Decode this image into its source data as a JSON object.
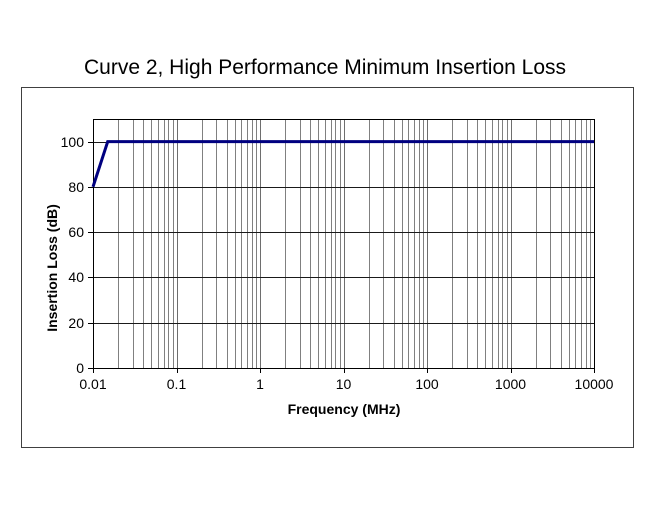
{
  "page": {
    "background": "#ffffff"
  },
  "chart_data": {
    "type": "line",
    "title": "Curve 2, High Performance Minimum Insertion Loss",
    "xlabel": "Frequency (MHz)",
    "ylabel": "Insertion Loss (dB)",
    "x_scale": "log",
    "y_scale": "linear",
    "xlim": [
      0.01,
      10000
    ],
    "ylim": [
      0,
      110
    ],
    "x_ticks": [
      "0.01",
      "0.1",
      "1",
      "10",
      "100",
      "1000",
      "10000"
    ],
    "y_ticks": [
      0,
      20,
      40,
      60,
      80,
      100
    ],
    "grid": {
      "vertical": "log decades with minor lines 2-9 per decade",
      "horizontal": "major lines every 20 dB"
    },
    "legend": "none",
    "series": [
      {
        "color": "#000080",
        "points": [
          [
            0.01,
            80
          ],
          [
            0.015,
            100
          ],
          [
            10000,
            100
          ]
        ]
      }
    ],
    "colors": {
      "line": "#000080",
      "grid_minor": "#808080",
      "grid_decade": "#6e6e6e",
      "grid_major_horizontal": "#1a1a1a",
      "axis": "#000000",
      "frame_border": "#404040",
      "text": "#000000"
    }
  }
}
